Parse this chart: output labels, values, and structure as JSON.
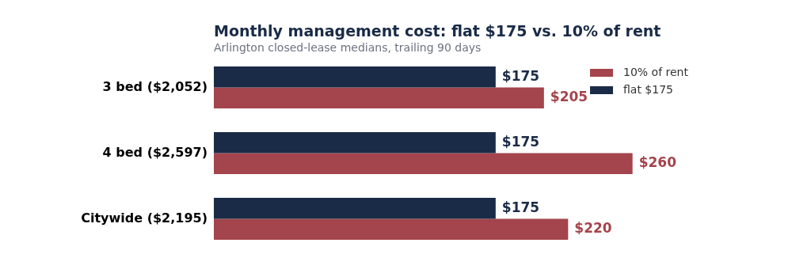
{
  "chart_data": {
    "type": "bar",
    "orientation": "horizontal",
    "title": "Monthly management cost: flat $175 vs. 10% of rent",
    "subtitle": "Arlington closed-lease medians, trailing 90 days",
    "categories": [
      "3 bed ($2,052)",
      "4 bed ($2,597)",
      "Citywide ($2,195)"
    ],
    "series": [
      {
        "name": "flat $175",
        "color": "#1a2b47",
        "values": [
          175,
          175,
          175
        ],
        "value_labels": [
          "$175",
          "$175",
          "$175"
        ]
      },
      {
        "name": "10% of rent",
        "color": "#a4444c",
        "values": [
          205,
          260,
          220
        ],
        "value_labels": [
          "$205",
          "$260",
          "$220"
        ]
      }
    ],
    "legend": "top right",
    "tick_labels": "y"
  }
}
